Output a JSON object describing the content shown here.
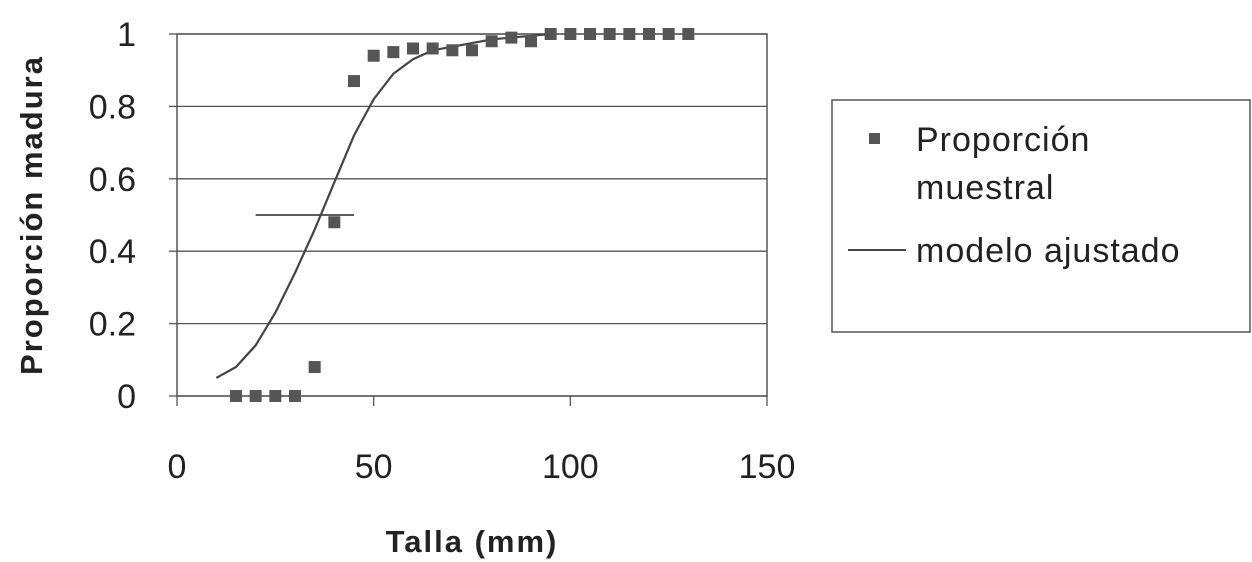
{
  "chart_data": {
    "type": "scatter",
    "xlabel": "Talla (mm)",
    "ylabel": "Proporción madura",
    "xlim": [
      0,
      150
    ],
    "ylim": [
      0,
      1
    ],
    "x_ticks": [
      "0",
      "50",
      "100",
      "150"
    ],
    "y_ticks": [
      "0",
      "0.2",
      "0.4",
      "0.6",
      "0.8",
      "1"
    ],
    "grid": "horizontal",
    "legend_position": "right",
    "series": [
      {
        "name": "Proporción muestral",
        "type": "scatter",
        "marker": "square",
        "x": [
          15,
          20,
          25,
          30,
          35,
          40,
          45,
          50,
          55,
          60,
          65,
          70,
          75,
          80,
          85,
          90,
          95,
          100,
          105,
          110,
          115,
          120,
          125,
          130
        ],
        "y": [
          0,
          0,
          0,
          0,
          0.08,
          0.48,
          0.87,
          0.94,
          0.95,
          0.96,
          0.96,
          0.955,
          0.955,
          0.98,
          0.99,
          0.98,
          1,
          1,
          1,
          1,
          1,
          1,
          1,
          1
        ]
      },
      {
        "name": "modelo ajustado",
        "type": "line",
        "x": [
          10,
          15,
          20,
          25,
          30,
          35,
          40,
          45,
          50,
          55,
          60,
          65,
          70,
          75,
          80,
          90,
          95
        ],
        "y": [
          0.05,
          0.08,
          0.14,
          0.23,
          0.34,
          0.46,
          0.59,
          0.72,
          0.82,
          0.89,
          0.93,
          0.955,
          0.965,
          0.975,
          0.985,
          0.995,
          1
        ]
      }
    ],
    "annotations": [
      {
        "type": "hline_segment",
        "y": 0.5,
        "x_from": 20,
        "x_to": 45
      }
    ],
    "legend_lines": {
      "s0": [
        "Proporción",
        "muestral"
      ],
      "s1": [
        "modelo ajustado"
      ]
    }
  }
}
